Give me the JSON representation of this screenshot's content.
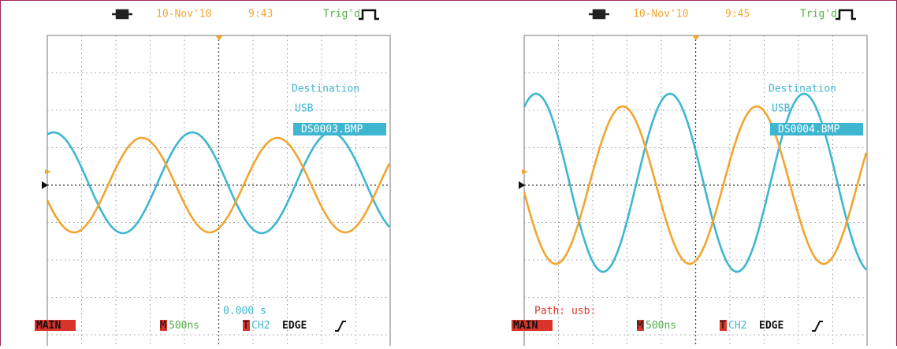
{
  "screens": [
    {
      "date": "10-Nov'10",
      "time": "9:43",
      "trigger_status": "Trig'd",
      "overlay": {
        "destination": "Destination",
        "device": "USB",
        "filename": "DS0003.BMP"
      },
      "status_text": "0.000 s",
      "bottom_bar": {
        "mode": "MAIN",
        "timebase_key": "M",
        "timebase": "500ns",
        "trigger_key": "T",
        "trigger_source": "CH2",
        "trigger_type": "EDGE"
      }
    },
    {
      "date": "10-Nov'10",
      "time": "9:45",
      "trigger_status": "Trig'd",
      "overlay": {
        "destination": "Destination",
        "device": "USB",
        "filename": "DS0004.BMP"
      },
      "status_text": "Path: usb:",
      "bottom_bar": {
        "mode": "MAIN",
        "timebase_key": "M",
        "timebase": "500ns",
        "trigger_key": "T",
        "trigger_source": "CH2",
        "trigger_type": "EDGE"
      }
    }
  ]
}
